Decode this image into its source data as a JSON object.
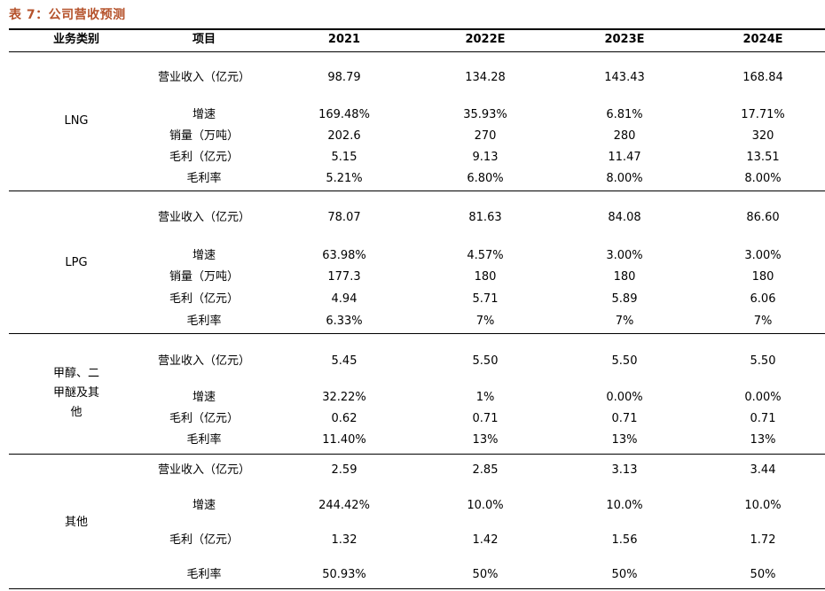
{
  "table_title": "表 7：公司营收预测",
  "headers": [
    "业务类别",
    "项目",
    "2021",
    "2022E",
    "2023E",
    "2024E"
  ],
  "groups": [
    {
      "category": "LNG",
      "rows": [
        {
          "item": "营业收入（亿元）",
          "values": [
            "98.79",
            "134.28",
            "143.43",
            "168.84"
          ]
        },
        {
          "item": "增速",
          "values": [
            "169.48%",
            "35.93%",
            "6.81%",
            "17.71%"
          ]
        },
        {
          "item": "销量（万吨）",
          "values": [
            "202.6",
            "270",
            "280",
            "320"
          ]
        },
        {
          "item": "毛利（亿元）",
          "values": [
            "5.15",
            "9.13",
            "11.47",
            "13.51"
          ]
        },
        {
          "item": "毛利率",
          "values": [
            "5.21%",
            "6.80%",
            "8.00%",
            "8.00%"
          ]
        }
      ]
    },
    {
      "category": "LPG",
      "rows": [
        {
          "item": "营业收入（亿元）",
          "values": [
            "78.07",
            "81.63",
            "84.08",
            "86.60"
          ]
        },
        {
          "item": "增速",
          "values": [
            "63.98%",
            "4.57%",
            "3.00%",
            "3.00%"
          ]
        },
        {
          "item": "销量（万吨）",
          "values": [
            "177.3",
            "180",
            "180",
            "180"
          ]
        },
        {
          "item": "毛利（亿元）",
          "values": [
            "4.94",
            "5.71",
            "5.89",
            "6.06"
          ]
        },
        {
          "item": "毛利率",
          "values": [
            "6.33%",
            "7%",
            "7%",
            "7%"
          ]
        }
      ]
    },
    {
      "category": "甲醇、二甲醚及其他",
      "rows": [
        {
          "item": "营业收入（亿元）",
          "values": [
            "5.45",
            "5.50",
            "5.50",
            "5.50"
          ]
        },
        {
          "item": "增速",
          "values": [
            "32.22%",
            "1%",
            "0.00%",
            "0.00%"
          ]
        },
        {
          "item": "毛利（亿元）",
          "values": [
            "0.62",
            "0.71",
            "0.71",
            "0.71"
          ]
        },
        {
          "item": "毛利率",
          "values": [
            "11.40%",
            "13%",
            "13%",
            "13%"
          ]
        }
      ]
    },
    {
      "category": "其他",
      "rows": [
        {
          "item": "营业收入（亿元）",
          "values": [
            "2.59",
            "2.85",
            "3.13",
            "3.44"
          ]
        },
        {
          "item": "增速",
          "values": [
            "244.42%",
            "10.0%",
            "10.0%",
            "10.0%"
          ]
        },
        {
          "item": "毛利（亿元）",
          "values": [
            "1.32",
            "1.42",
            "1.56",
            "1.72"
          ]
        },
        {
          "item": "毛利率",
          "values": [
            "50.93%",
            "50%",
            "50%",
            "50%"
          ]
        }
      ]
    }
  ]
}
